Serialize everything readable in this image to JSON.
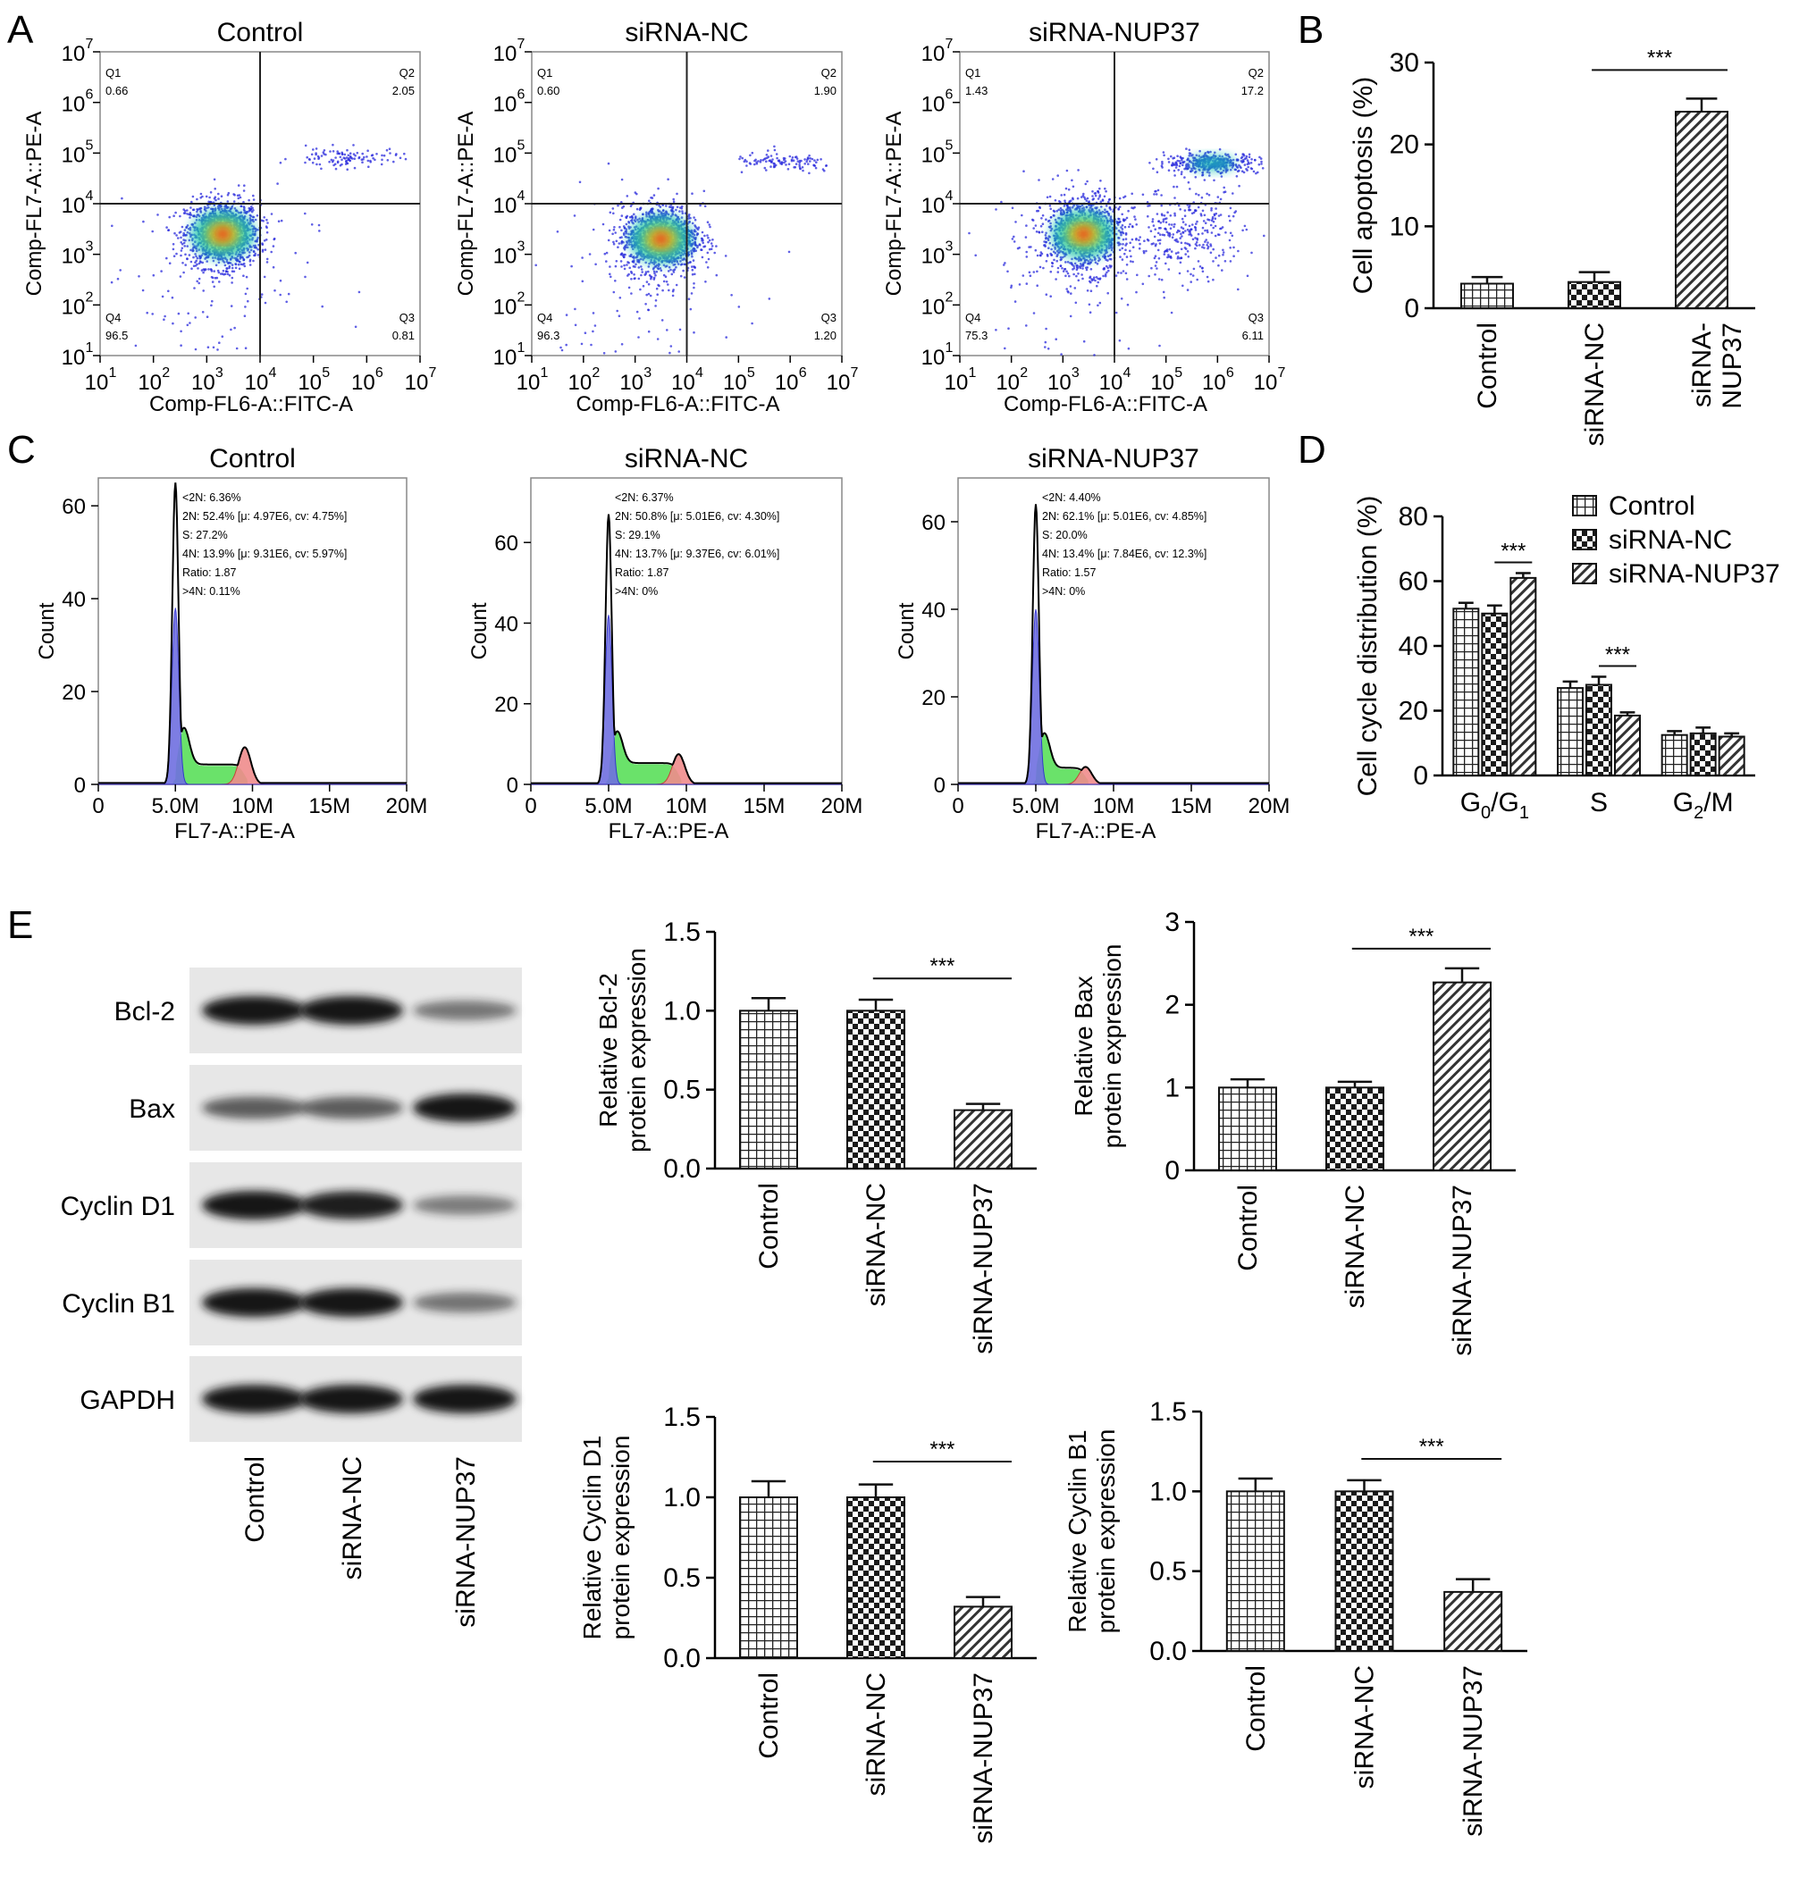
{
  "panel_labels": [
    "A",
    "B",
    "C",
    "D",
    "E"
  ],
  "groups": [
    "Control",
    "siRNA-NC",
    "siRNA-NUP37"
  ],
  "colors": {
    "blot_band": "#151515",
    "blot_bg": "#e7e7e7",
    "hist_blue": "#7070e0",
    "hist_green": "#50dd50",
    "hist_red": "#f08c8c",
    "density_low": "#2a2adc",
    "density_mid": "#16c4b2",
    "density_high": "#ff2010",
    "axis": "#000000"
  },
  "chart_data": [
    {
      "id": "A",
      "type": "scatter",
      "description_type": "flow-cytometry-quadrant",
      "xlabel": "Comp-FL6-A::FITC-A",
      "ylabel": "Comp-FL7-A::PE-A",
      "axis_scale": "log",
      "x_ticks": [
        "10",
        "10",
        "10",
        "10",
        "10",
        "10",
        "10"
      ],
      "x_tick_exp": [
        "1",
        "2",
        "3",
        "4",
        "5",
        "6",
        "7"
      ],
      "y_ticks": [
        "10",
        "10",
        "10",
        "10",
        "10",
        "10",
        "10"
      ],
      "y_tick_exp": [
        "1",
        "2",
        "3",
        "4",
        "5",
        "6",
        "7"
      ],
      "xlim": [
        1,
        7
      ],
      "ylim": [
        1,
        7
      ],
      "plots": [
        {
          "title": "Control",
          "gate_x": 4.0,
          "gate_y": 4.0,
          "Q1": {
            "name": "Q1",
            "value": "0.66"
          },
          "Q2": {
            "name": "Q2",
            "value": "2.05"
          },
          "Q3": {
            "name": "Q3",
            "value": "0.81"
          },
          "Q4": {
            "name": "Q4",
            "value": "96.5"
          }
        },
        {
          "title": "siRNA-NC",
          "gate_x": 4.0,
          "gate_y": 4.0,
          "Q1": {
            "name": "Q1",
            "value": "0.60"
          },
          "Q2": {
            "name": "Q2",
            "value": "1.90"
          },
          "Q3": {
            "name": "Q3",
            "value": "1.20"
          },
          "Q4": {
            "name": "Q4",
            "value": "96.3"
          }
        },
        {
          "title": "siRNA-NUP37",
          "gate_x": 4.0,
          "gate_y": 4.0,
          "Q1": {
            "name": "Q1",
            "value": "1.43"
          },
          "Q2": {
            "name": "Q2",
            "value": "17.2"
          },
          "Q3": {
            "name": "Q3",
            "value": "6.11"
          },
          "Q4": {
            "name": "Q4",
            "value": "75.3"
          }
        }
      ]
    },
    {
      "id": "B",
      "type": "bar",
      "categories": [
        "Control",
        "siRNA-NC",
        "siRNA-NUP37"
      ],
      "category_lines": [
        [
          "Control"
        ],
        [
          "siRNA-NC"
        ],
        [
          "siRNA-",
          "NUP37"
        ]
      ],
      "values": [
        3.0,
        3.2,
        24.0
      ],
      "errors": [
        0.8,
        1.2,
        1.6
      ],
      "ylabel": "Cell apoptosis (%)",
      "ylim": [
        0,
        30
      ],
      "yticks": [
        0,
        10,
        20,
        30
      ],
      "significance": [
        {
          "from": 1,
          "to": 2,
          "label": "***"
        }
      ]
    },
    {
      "id": "C",
      "type": "area",
      "description_type": "cell-cycle-histogram",
      "xlabel": "FL7-A::PE-A",
      "ylabel": "Count",
      "x_ticks": [
        "0",
        "5.0M",
        "10M",
        "15M",
        "20M"
      ],
      "xlim": [
        0,
        20
      ],
      "plots": [
        {
          "title": "Control",
          "ylim": [
            0,
            66
          ],
          "yticks": [
            0,
            20,
            40,
            60
          ],
          "g1_peak": 5.0,
          "g1_height": 38,
          "total_height": 65,
          "s_level": 4,
          "g2_peak": 9.5,
          "g2_height": 8,
          "stats": [
            "<2N: 6.36%",
            "2N: 52.4%   [μ: 4.97E6, cv: 4.75%]",
            "S: 27.2%",
            "4N: 13.9%   [μ: 9.31E6, cv: 5.97%]",
            "Ratio: 1.87",
            ">4N: 0.11%"
          ]
        },
        {
          "title": "siRNA-NC",
          "ylim": [
            0,
            76
          ],
          "yticks": [
            0,
            20,
            40,
            60
          ],
          "g1_peak": 5.0,
          "g1_height": 42,
          "total_height": 67,
          "s_level": 5,
          "g2_peak": 9.5,
          "g2_height": 7.5,
          "stats": [
            "<2N: 6.37%",
            "2N: 50.8%   [μ: 5.01E6, cv: 4.30%]",
            "S: 29.1%",
            "4N: 13.7%   [μ: 9.37E6, cv: 6.01%]",
            "Ratio: 1.87",
            ">4N: 0%"
          ]
        },
        {
          "title": "siRNA-NUP37",
          "ylim": [
            0,
            70
          ],
          "yticks": [
            0,
            20,
            40,
            60
          ],
          "g1_peak": 5.0,
          "g1_height": 40,
          "total_height": 64,
          "s_level": 3.5,
          "g2_peak": 8.2,
          "g2_height": 4,
          "stats": [
            "<2N: 4.40%",
            "2N: 62.1%   [μ: 5.01E6, cv: 4.85%]",
            "S: 20.0%",
            "4N: 13.4%   [μ: 7.84E6, cv: 12.3%]",
            "Ratio: 1.57",
            ">4N: 0%"
          ]
        }
      ]
    },
    {
      "id": "D",
      "type": "bar",
      "categories": [
        "G0/G1",
        "S",
        "G2/M"
      ],
      "category_parts": [
        [
          "G",
          "0",
          "/G",
          "1"
        ],
        [
          "S"
        ],
        [
          "G",
          "2",
          "/M"
        ]
      ],
      "series": [
        {
          "name": "Control",
          "values": [
            51.5,
            27,
            12.5
          ],
          "errors": [
            1.8,
            2.0,
            1.2
          ],
          "pattern": "grid"
        },
        {
          "name": "siRNA-NC",
          "values": [
            50,
            28,
            13
          ],
          "errors": [
            2.5,
            2.5,
            1.8
          ],
          "pattern": "check"
        },
        {
          "name": "siRNA-NUP37",
          "values": [
            61,
            18.5,
            12
          ],
          "errors": [
            1.5,
            1.0,
            1.0
          ],
          "pattern": "diag"
        }
      ],
      "ylabel": "Cell cycle distribution (%)",
      "ylim": [
        0,
        80
      ],
      "yticks": [
        0,
        20,
        40,
        60,
        80
      ],
      "legend_position": "top-right",
      "significance": [
        {
          "category": 0,
          "label": "***"
        },
        {
          "category": 1,
          "label": "***"
        }
      ]
    },
    {
      "id": "E-blot",
      "type": "table",
      "description_type": "western-blot",
      "proteins": [
        "Bcl-2",
        "Bax",
        "Cyclin D1",
        "Cyclin B1",
        "GAPDH"
      ],
      "lanes": [
        "Control",
        "siRNA-NC",
        "siRNA-NUP37"
      ],
      "band_intensity": [
        [
          1.0,
          1.0,
          0.38
        ],
        [
          0.55,
          0.55,
          1.0
        ],
        [
          1.0,
          0.95,
          0.35
        ],
        [
          1.0,
          1.0,
          0.4
        ],
        [
          1.0,
          1.0,
          1.0
        ]
      ]
    },
    {
      "id": "E-Bcl2",
      "type": "bar",
      "categories": [
        "Control",
        "siRNA-NC",
        "siRNA-NUP37"
      ],
      "values": [
        1.0,
        1.0,
        0.37
      ],
      "errors": [
        0.08,
        0.07,
        0.04
      ],
      "ylabel_lines": [
        "Relative Bcl-2",
        "protein expression"
      ],
      "ylim": [
        0,
        1.5
      ],
      "yticks": [
        "0.0",
        "0.5",
        "1.0",
        "1.5"
      ],
      "significance": [
        {
          "from": 1,
          "to": 2,
          "label": "***"
        }
      ]
    },
    {
      "id": "E-Bax",
      "type": "bar",
      "categories": [
        "Control",
        "siRNA-NC",
        "siRNA-NUP37"
      ],
      "values": [
        1.0,
        1.0,
        2.27
      ],
      "errors": [
        0.1,
        0.07,
        0.17
      ],
      "ylabel_lines": [
        "Relative Bax",
        "protein expression"
      ],
      "ylim": [
        0,
        3
      ],
      "yticks": [
        "0",
        "1",
        "2",
        "3"
      ],
      "significance": [
        {
          "from": 1,
          "to": 2,
          "label": "***"
        }
      ]
    },
    {
      "id": "E-CyclinD1",
      "type": "bar",
      "categories": [
        "Control",
        "siRNA-NC",
        "siRNA-NUP37"
      ],
      "values": [
        1.0,
        1.0,
        0.32
      ],
      "errors": [
        0.1,
        0.08,
        0.06
      ],
      "ylabel_lines": [
        "Relative Cyclin D1",
        "protein expression"
      ],
      "ylim": [
        0,
        1.5
      ],
      "yticks": [
        "0.0",
        "0.5",
        "1.0",
        "1.5"
      ],
      "significance": [
        {
          "from": 1,
          "to": 2,
          "label": "***"
        }
      ]
    },
    {
      "id": "E-CyclinB1",
      "type": "bar",
      "categories": [
        "Control",
        "siRNA-NC",
        "siRNA-NUP37"
      ],
      "values": [
        1.0,
        1.0,
        0.37
      ],
      "errors": [
        0.08,
        0.07,
        0.08
      ],
      "ylabel_lines": [
        "Relative Cyclin B1",
        "protein expression"
      ],
      "ylim": [
        0,
        1.5
      ],
      "yticks": [
        "0.0",
        "0.5",
        "1.0",
        "1.5"
      ],
      "significance": [
        {
          "from": 1,
          "to": 2,
          "label": "***"
        }
      ]
    }
  ]
}
